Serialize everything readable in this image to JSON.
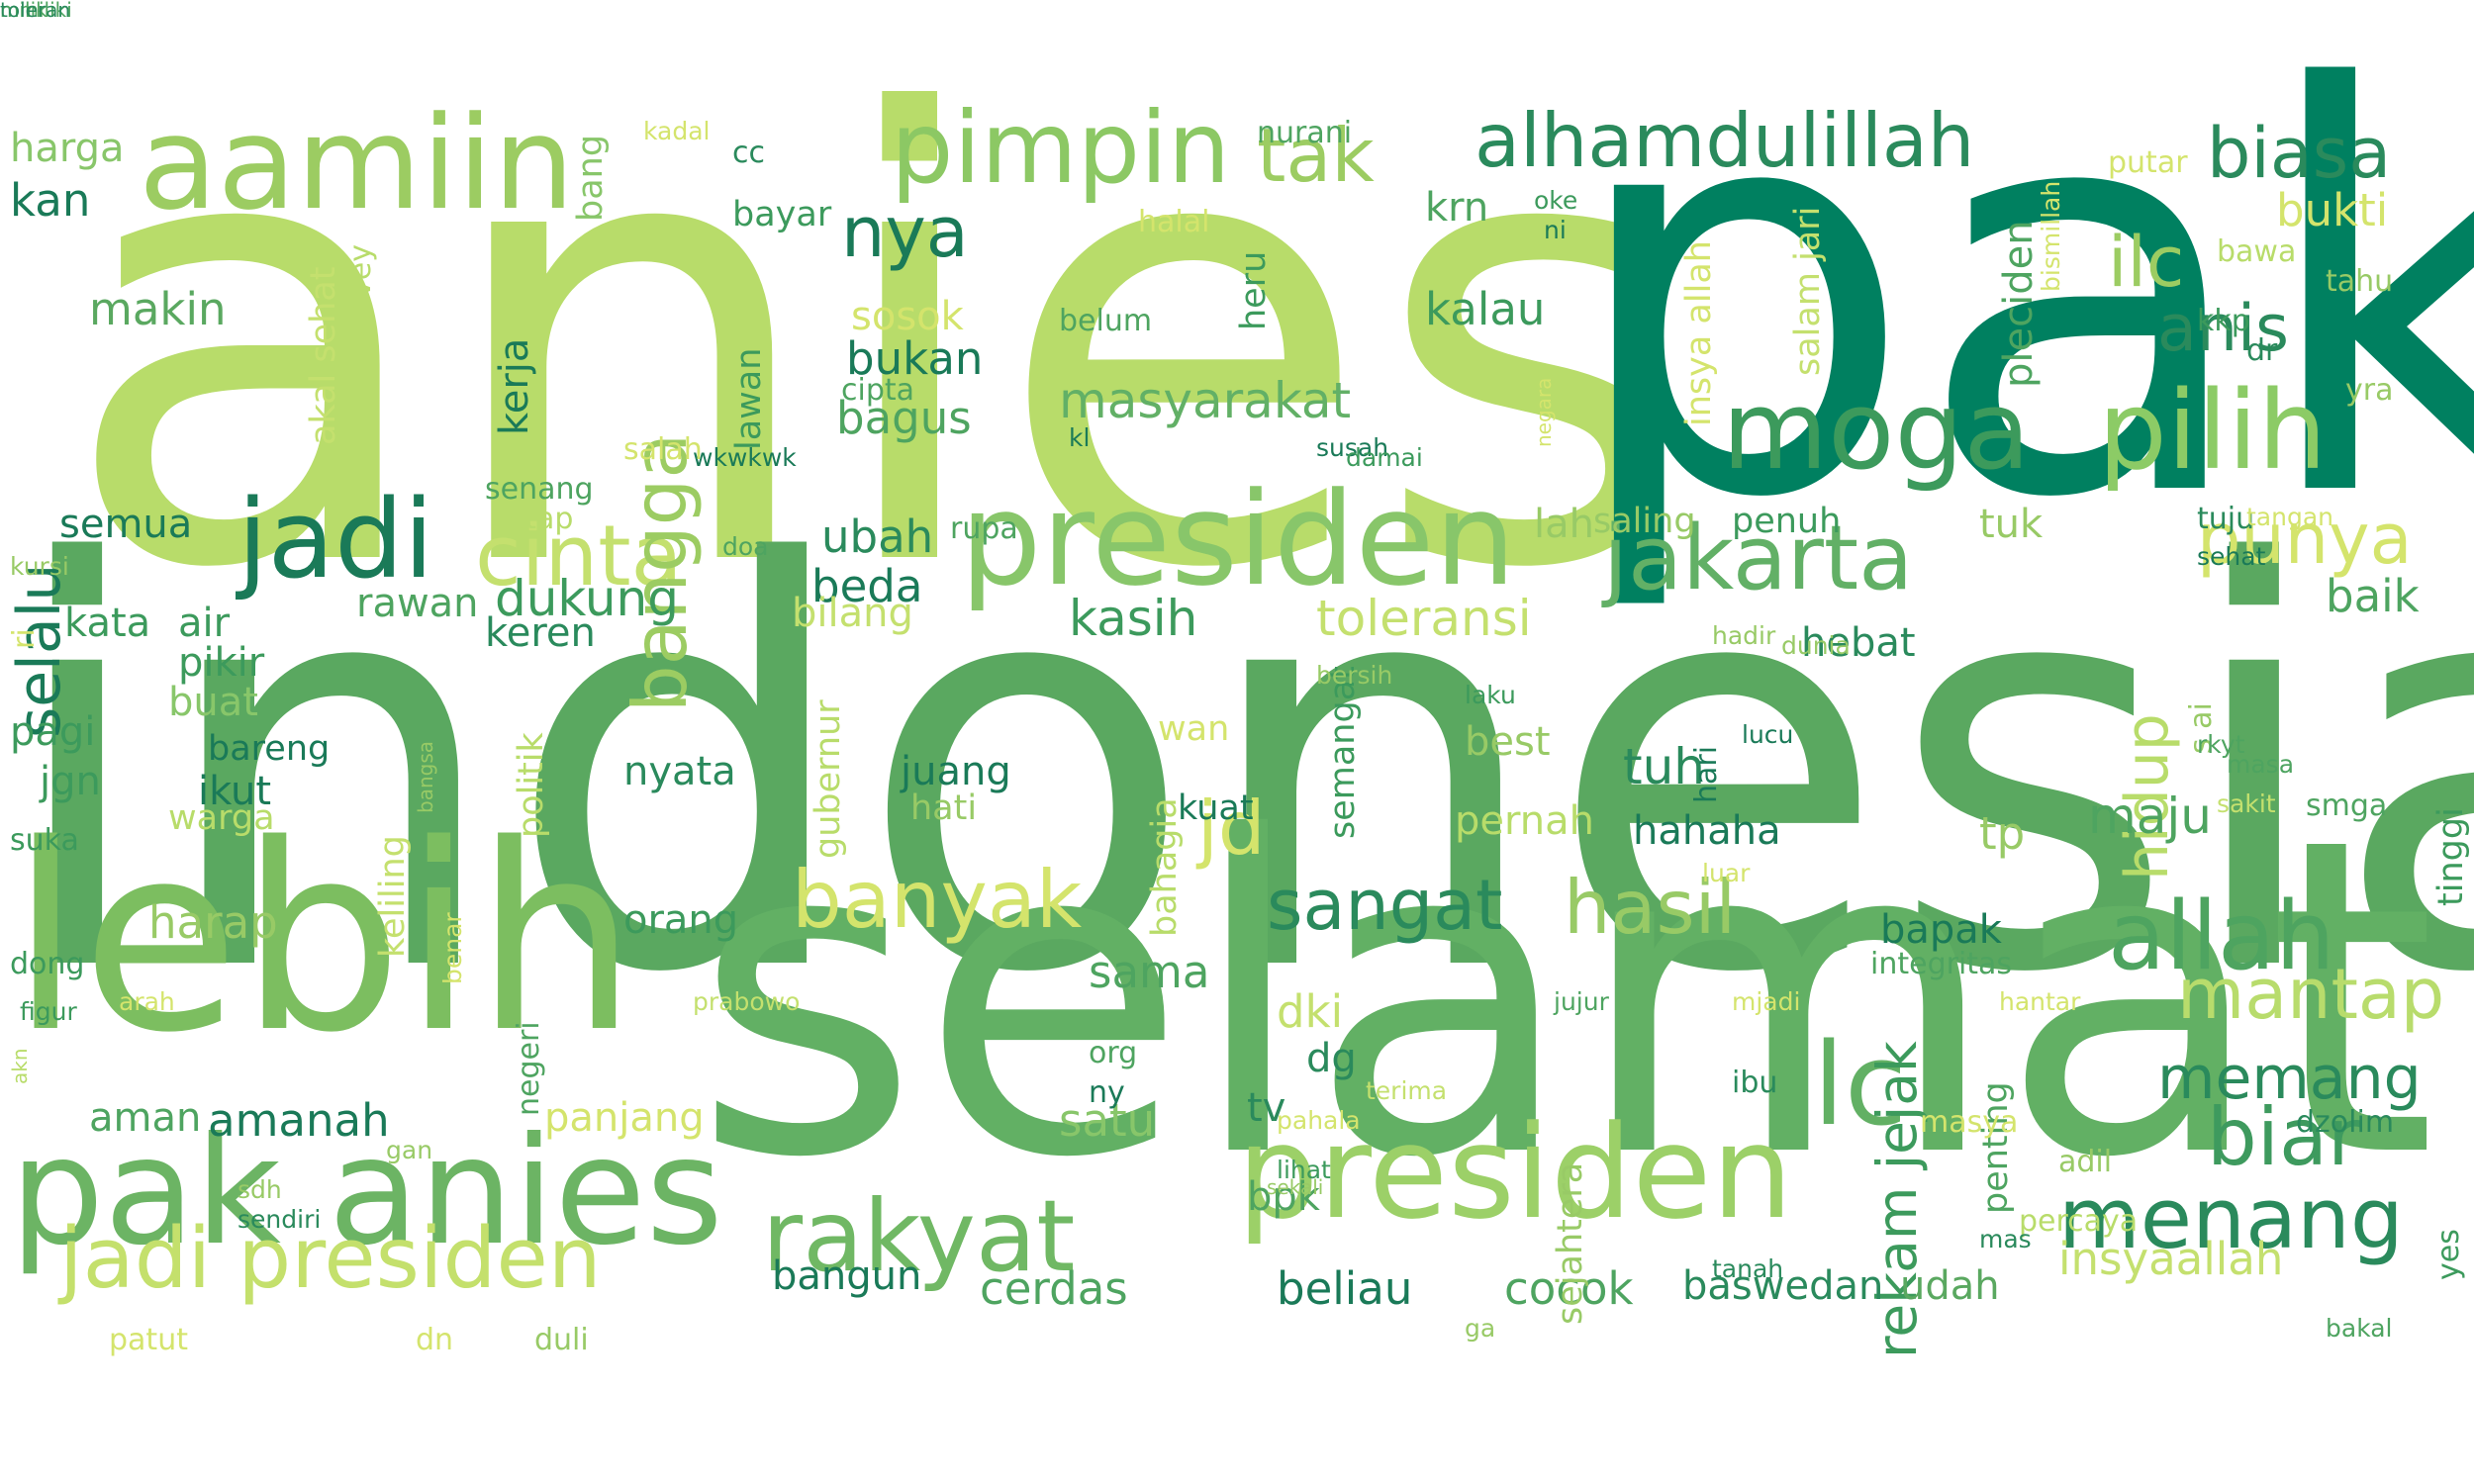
{
  "words": [
    {
      "text": "anies",
      "color": "#b8dc6a",
      "rot": 0
    },
    {
      "text": "pak",
      "color": "#008060",
      "rot": 0
    },
    {
      "text": "indonesia",
      "color": "#5aa860",
      "rot": 0
    },
    {
      "text": "selamat",
      "color": "#62b064",
      "rot": 0
    },
    {
      "text": "lebih",
      "color": "#7cbe60",
      "rot": 0
    },
    {
      "text": "pak anies",
      "color": "#6cb464",
      "rot": 0
    },
    {
      "text": "presiden",
      "color": "#88c66a",
      "rot": 0
    },
    {
      "text": "presiden",
      "color": "#9cd068",
      "rot": 0
    },
    {
      "text": "aamiin",
      "color": "#9ccc62",
      "rot": 0
    },
    {
      "text": "pimpin",
      "color": "#8cc864",
      "rot": 0
    },
    {
      "text": "moga",
      "color": "#3c9a5c",
      "rot": 0
    },
    {
      "text": "jadi",
      "color": "#1a7a58",
      "rot": 0
    },
    {
      "text": "jakarta",
      "color": "#62b066",
      "rot": 0
    },
    {
      "text": "pilih",
      "color": "#8ccb66",
      "rot": 0
    },
    {
      "text": "ilc",
      "color": "#62b064",
      "rot": 0
    },
    {
      "text": "rakyat",
      "color": "#70b864",
      "rot": 0
    },
    {
      "text": "menang",
      "color": "#2a8a5c",
      "rot": 0
    },
    {
      "text": "jadi presiden",
      "color": "#c4e06c",
      "rot": 0
    },
    {
      "text": "cinta",
      "color": "#c4e06e",
      "rot": 0
    },
    {
      "text": "alhamdulillah",
      "color": "#2a8a5c",
      "rot": 0
    },
    {
      "text": "allah",
      "color": "#4ea460",
      "rot": 0
    },
    {
      "text": "biar",
      "color": "#3e9a5e",
      "rot": 0
    },
    {
      "text": "tak",
      "color": "#9ccc62",
      "rot": 0
    },
    {
      "text": "biasa",
      "color": "#2a8a5c",
      "rot": 0
    },
    {
      "text": "nya",
      "color": "#1a7a58",
      "rot": 0
    },
    {
      "text": "banyak",
      "color": "#d4e46c",
      "rot": 0
    },
    {
      "text": "hasil",
      "color": "#98ca66",
      "rot": 0
    },
    {
      "text": "punya",
      "color": "#d4e46c",
      "rot": 0
    },
    {
      "text": "mantap",
      "color": "#b8dc6c",
      "rot": 0
    },
    {
      "text": "memang",
      "color": "#2a8a5c",
      "rot": 0
    },
    {
      "text": "sangat",
      "color": "#2a8a5c",
      "rot": 0
    },
    {
      "text": "anis",
      "color": "#2a8a5c",
      "rot": 0
    },
    {
      "text": "jd",
      "color": "#d4e46c",
      "rot": 0
    },
    {
      "text": "ilc",
      "color": "#9ccc62",
      "rot": 0
    },
    {
      "text": "bangga",
      "color": "#9ccc62",
      "rot": -90
    },
    {
      "text": "selalu",
      "color": "#1a7a58",
      "rot": -90
    },
    {
      "text": "hidup",
      "color": "#b8dc6a",
      "rot": -90
    },
    {
      "text": "rekam jejak",
      "color": "#3c9a5c",
      "rot": -90
    },
    {
      "text": "masyarakat",
      "color": "#62b066",
      "rot": 0
    },
    {
      "text": "kasih",
      "color": "#3c9a5c",
      "rot": 0
    },
    {
      "text": "toleransi",
      "color": "#c4e06e",
      "rot": 0
    },
    {
      "text": "dukung",
      "color": "#3c9a5c",
      "rot": 0
    },
    {
      "text": "kalau",
      "color": "#3c9a5c",
      "rot": 0
    },
    {
      "text": "bukti",
      "color": "#d4e46c",
      "rot": 0
    },
    {
      "text": "makin",
      "color": "#5aa860",
      "rot": 0
    },
    {
      "text": "harga",
      "color": "#88c66a",
      "rot": 0
    },
    {
      "text": "kan",
      "color": "#1a7a58",
      "rot": 0
    },
    {
      "text": "baik",
      "color": "#4ea460",
      "rot": 0
    },
    {
      "text": "maju",
      "color": "#4ea460",
      "rot": 0
    },
    {
      "text": "tuh",
      "color": "#2a8a5c",
      "rot": 0
    },
    {
      "text": "ubah",
      "color": "#2a8a5c",
      "rot": 0
    },
    {
      "text": "beda",
      "color": "#1a7a58",
      "rot": 0
    },
    {
      "text": "bagus",
      "color": "#4ea460",
      "rot": 0
    },
    {
      "text": "bukan",
      "color": "#1a7a58",
      "rot": 0
    },
    {
      "text": "sosok",
      "color": "#d4e46c",
      "rot": 0
    },
    {
      "text": "bilang",
      "color": "#c4e06e",
      "rot": 0
    },
    {
      "text": "rawan",
      "color": "#4ea460",
      "rot": 0
    },
    {
      "text": "keren",
      "color": "#2a8a5c",
      "rot": 0
    },
    {
      "text": "semua",
      "color": "#1a7a58",
      "rot": 0
    },
    {
      "text": "kata",
      "color": "#3c9a5c",
      "rot": 0
    },
    {
      "text": "air",
      "color": "#3c9a5c",
      "rot": 0
    },
    {
      "text": "pikir",
      "color": "#3c9a5c",
      "rot": 0
    },
    {
      "text": "buat",
      "color": "#88c66a",
      "rot": 0
    },
    {
      "text": "pagi",
      "color": "#3c9a5c",
      "rot": 0
    },
    {
      "text": "jgn",
      "color": "#3c9a5c",
      "rot": 0
    },
    {
      "text": "ikut",
      "color": "#1a7a58",
      "rot": 0
    },
    {
      "text": "warga",
      "color": "#b8dc6a",
      "rot": 0
    },
    {
      "text": "harap",
      "color": "#98ca66",
      "rot": 0
    },
    {
      "text": "orang",
      "color": "#3c9a5c",
      "rot": 0
    },
    {
      "text": "amanah",
      "color": "#1a7a58",
      "rot": 0
    },
    {
      "text": "aman",
      "color": "#4ea460",
      "rot": 0
    },
    {
      "text": "panjang",
      "color": "#d4e46c",
      "rot": 0
    },
    {
      "text": "sama",
      "color": "#4ea460",
      "rot": 0
    },
    {
      "text": "satu",
      "color": "#88c66a",
      "rot": 0
    },
    {
      "text": "dki",
      "color": "#c4e06e",
      "rot": 0
    },
    {
      "text": "dg",
      "color": "#2a8a5c",
      "rot": 0
    },
    {
      "text": "tv",
      "color": "#2a8a5c",
      "rot": 0
    },
    {
      "text": "bpk",
      "color": "#4ea460",
      "rot": 0
    },
    {
      "text": "cerdas",
      "color": "#4ea460",
      "rot": 0
    },
    {
      "text": "beliau",
      "color": "#1a7a58",
      "rot": 0
    },
    {
      "text": "cocok",
      "color": "#4ea460",
      "rot": 0
    },
    {
      "text": "baswedan",
      "color": "#2a8a5c",
      "rot": 0
    },
    {
      "text": "udah",
      "color": "#5aa860",
      "rot": 0
    },
    {
      "text": "insyaallah",
      "color": "#c4e06e",
      "rot": 0
    },
    {
      "text": "bangun",
      "color": "#1a7a58",
      "rot": 0
    },
    {
      "text": "bapak",
      "color": "#1a7a58",
      "rot": 0
    },
    {
      "text": "tp",
      "color": "#98ca66",
      "rot": 0
    },
    {
      "text": "hahaha",
      "color": "#1a7a58",
      "rot": 0
    },
    {
      "text": "pernah",
      "color": "#b8dc6a",
      "rot": 0
    },
    {
      "text": "best",
      "color": "#98ca66",
      "rot": 0
    },
    {
      "text": "nyata",
      "color": "#2a8a5c",
      "rot": 0
    },
    {
      "text": "juang",
      "color": "#1a7a58",
      "rot": 0
    },
    {
      "text": "hati",
      "color": "#98ca66",
      "rot": 0
    },
    {
      "text": "kuat",
      "color": "#1a7a58",
      "rot": 0
    },
    {
      "text": "wan",
      "color": "#d4e46c",
      "rot": 0
    },
    {
      "text": "hebat",
      "color": "#2a8a5c",
      "rot": 0
    },
    {
      "text": "tuk",
      "color": "#98ca66",
      "rot": 0
    },
    {
      "text": "lah",
      "color": "#98ca66",
      "rot": 0
    },
    {
      "text": "saling",
      "color": "#98ca66",
      "rot": 0
    },
    {
      "text": "penuh",
      "color": "#3c9a5c",
      "rot": 0
    },
    {
      "text": "krn",
      "color": "#4ea460",
      "rot": 0
    },
    {
      "text": "bayar",
      "color": "#3c9a5c",
      "rot": 0
    },
    {
      "text": "bang",
      "color": "#88c66a",
      "rot": -90
    },
    {
      "text": "lawan",
      "color": "#3c9a5c",
      "rot": -90
    },
    {
      "text": "kerja",
      "color": "#1a7a58",
      "rot": -90
    },
    {
      "text": "heru",
      "color": "#3c9a5c",
      "rot": -90
    },
    {
      "text": "pleciden",
      "color": "#4ea460",
      "rot": -90
    },
    {
      "text": "salam jari",
      "color": "#c4e06e",
      "rot": -90
    },
    {
      "text": "insya allah",
      "color": "#d4e46c",
      "rot": -90
    },
    {
      "text": "akal sehat",
      "color": "#c4e06e",
      "rot": -90
    },
    {
      "text": "survey",
      "color": "#b8dc6a",
      "rot": -90
    },
    {
      "text": "semangat",
      "color": "#3c9a5c",
      "rot": -90
    },
    {
      "text": "politik",
      "color": "#b8dc6a",
      "rot": -90
    },
    {
      "text": "keliling",
      "color": "#c4e06e",
      "rot": -90
    },
    {
      "text": "gubernur",
      "color": "#b8dc6a",
      "rot": -90
    },
    {
      "text": "bahagia",
      "color": "#b8dc6a",
      "rot": -90
    },
    {
      "text": "sejahtera",
      "color": "#98ca66",
      "rot": -90
    },
    {
      "text": "penting",
      "color": "#4ea460",
      "rot": -90
    },
    {
      "text": "hari",
      "color": "#1a7a58",
      "rot": -90
    },
    {
      "text": "tinggi",
      "color": "#3c9a5c",
      "rot": -90
    },
    {
      "text": "yes",
      "color": "#3c9a5c",
      "rot": -90
    },
    {
      "text": "kalo",
      "color": "#98ca66",
      "rot": -90
    },
    {
      "text": "bismillah",
      "color": "#d4e46c",
      "rot": -90
    },
    {
      "text": "negara",
      "color": "#d4e46c",
      "rot": -90
    },
    {
      "text": "bangsa",
      "color": "#98ca66",
      "rot": -90
    },
    {
      "text": "benar",
      "color": "#d4e46c",
      "rot": -90
    },
    {
      "text": "negeri",
      "color": "#4ea460",
      "rot": -90
    },
    {
      "text": "s ai",
      "color": "#98ca66",
      "rot": -90
    },
    {
      "text": "ri",
      "color": "#d4e46c",
      "rot": -90
    },
    {
      "text": "akn",
      "color": "#b8dc6a",
      "rot": -90
    },
    {
      "text": "kadal",
      "color": "#d4e46c",
      "rot": 0
    },
    {
      "text": "cc",
      "color": "#2a8a5c",
      "rot": 0
    },
    {
      "text": "nurani",
      "color": "#4ea460",
      "rot": 0
    },
    {
      "text": "halal",
      "color": "#d4e46c",
      "rot": 0
    },
    {
      "text": "oke",
      "color": "#3c9a5c",
      "rot": 0
    },
    {
      "text": "ni",
      "color": "#1a7a58",
      "rot": 0
    },
    {
      "text": "putar",
      "color": "#d4e46c",
      "rot": 0
    },
    {
      "text": "bawa",
      "color": "#b8dc6a",
      "rot": 0
    },
    {
      "text": "tahu",
      "color": "#98ca66",
      "rot": 0
    },
    {
      "text": "kkp",
      "color": "#3c9a5c",
      "rot": 0
    },
    {
      "text": "dr",
      "color": "#2a8a5c",
      "rot": 0
    },
    {
      "text": "yra",
      "color": "#98ca66",
      "rot": 0
    },
    {
      "text": "belum",
      "color": "#4ea460",
      "rot": 0
    },
    {
      "text": "cipta",
      "color": "#4ea460",
      "rot": 0
    },
    {
      "text": "wkwkwk",
      "color": "#1a7a58",
      "rot": 0
    },
    {
      "text": "kl",
      "color": "#1a7a58",
      "rot": 0
    },
    {
      "text": "susah",
      "color": "#1a7a58",
      "rot": 0
    },
    {
      "text": "damai",
      "color": "#3c9a5c",
      "rot": 0
    },
    {
      "text": "salah",
      "color": "#d4e46c",
      "rot": 0
    },
    {
      "text": "senang",
      "color": "#4ea460",
      "rot": 0
    },
    {
      "text": "tetap",
      "color": "#b8dc6a",
      "rot": 0
    },
    {
      "text": "rupa",
      "color": "#4ea460",
      "rot": 0
    },
    {
      "text": "doa",
      "color": "#4ea460",
      "rot": 0
    },
    {
      "text": "kursi",
      "color": "#98ca66",
      "rot": 0
    },
    {
      "text": "tuju",
      "color": "#2a8a5c",
      "rot": 0
    },
    {
      "text": "tangan",
      "color": "#d4e46c",
      "rot": 0
    },
    {
      "text": "sehat",
      "color": "#1a7a58",
      "rot": 0
    },
    {
      "text": "bersih",
      "color": "#98ca66",
      "rot": 0
    },
    {
      "text": "laku",
      "color": "#3c9a5c",
      "rot": 0
    },
    {
      "text": "hadir",
      "color": "#98ca66",
      "rot": 0
    },
    {
      "text": "dunia",
      "color": "#98ca66",
      "rot": 0
    },
    {
      "text": "lucu",
      "color": "#1a7a58",
      "rot": 0
    },
    {
      "text": "rkyt",
      "color": "#4ea460",
      "rot": 0
    },
    {
      "text": "masa",
      "color": "#4ea460",
      "rot": 0
    },
    {
      "text": "sakit",
      "color": "#c4e06e",
      "rot": 0
    },
    {
      "text": "smga",
      "color": "#4ea460",
      "rot": 0
    },
    {
      "text": "luar",
      "color": "#d4e46c",
      "rot": 0
    },
    {
      "text": "bareng",
      "color": "#1a7a58",
      "rot": 0
    },
    {
      "text": "suka",
      "color": "#3c9a5c",
      "rot": 0
    },
    {
      "text": "dong",
      "color": "#3c9a5c",
      "rot": 0
    },
    {
      "text": "arah",
      "color": "#d4e46c",
      "rot": 0
    },
    {
      "text": "figur",
      "color": "#3c9a5c",
      "rot": 0
    },
    {
      "text": "prabowo",
      "color": "#c4e06e",
      "rot": 0
    },
    {
      "text": "org",
      "color": "#4ea460",
      "rot": 0
    },
    {
      "text": "ny",
      "color": "#1a7a58",
      "rot": 0
    },
    {
      "text": "terima",
      "color": "#c4e06e",
      "rot": 0
    },
    {
      "text": "pahala",
      "color": "#d4e46c",
      "rot": 0
    },
    {
      "text": "lihat",
      "color": "#3c9a5c",
      "rot": 0
    },
    {
      "text": "sekali",
      "color": "#98ca66",
      "rot": 0
    },
    {
      "text": "gan",
      "color": "#98ca66",
      "rot": 0
    },
    {
      "text": "sdh",
      "color": "#98ca66",
      "rot": 0
    },
    {
      "text": "sendiri",
      "color": "#2a8a5c",
      "rot": 0
    },
    {
      "text": "jujur",
      "color": "#4ea460",
      "rot": 0
    },
    {
      "text": "mjadi",
      "color": "#d4e46c",
      "rot": 0
    },
    {
      "text": "integritas",
      "color": "#4ea460",
      "rot": 0
    },
    {
      "text": "hantar",
      "color": "#d4e46c",
      "rot": 0
    },
    {
      "text": "ibu",
      "color": "#2a8a5c",
      "rot": 0
    },
    {
      "text": "masya",
      "color": "#d4e46c",
      "rot": 0
    },
    {
      "text": "dzolim",
      "color": "#2a8a5c",
      "rot": 0
    },
    {
      "text": "adil",
      "color": "#98ca66",
      "rot": 0
    },
    {
      "text": "percaya",
      "color": "#b8dc6a",
      "rot": 0
    },
    {
      "text": "tanah",
      "color": "#2a8a5c",
      "rot": 0
    },
    {
      "text": "mas",
      "color": "#2a8a5c",
      "rot": 0
    },
    {
      "text": "ga",
      "color": "#98ca66",
      "rot": 0
    },
    {
      "text": "bakal",
      "color": "#4ea460",
      "rot": 0
    },
    {
      "text": "patut",
      "color": "#d4e46c",
      "rot": 0
    },
    {
      "text": "dn",
      "color": "#d4e46c",
      "rot": 0
    },
    {
      "text": "duli",
      "color": "#98ca66",
      "rot": 0
    },
    {
      "text": "mmiliki",
      "color": "#4ea460",
      "rot": 0
    },
    {
      "text": "milik",
      "color": "#4ea460",
      "rot": 0
    },
    {
      "text": "toleran",
      "color": "#2a8a5c",
      "rot": 0
    }
  ]
}
